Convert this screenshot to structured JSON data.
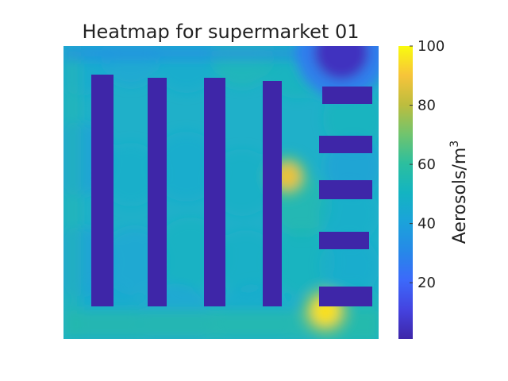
{
  "chart_data": {
    "type": "heatmap",
    "title": "Heatmap for supermarket 01",
    "colorbar": {
      "label": "Aerosols/m",
      "label_superscript": "3",
      "range": [
        1,
        100
      ],
      "ticks": [
        20,
        40,
        60,
        80,
        100
      ],
      "tick_labels": [
        "20",
        "40",
        "60",
        "80",
        "100"
      ],
      "colormap": "parula"
    },
    "axes": {
      "visible": false,
      "grid": false
    },
    "floor_mean": 45,
    "obstacle_value": 1,
    "hotspots": [
      {
        "name": "near-shelf-4",
        "peak": 88
      },
      {
        "name": "near-bottom-right-shelf",
        "peak": 95
      },
      {
        "name": "top-right-corner",
        "peak": 5
      }
    ],
    "obstacles": [
      "shelf-1",
      "shelf-2",
      "shelf-3",
      "shelf-4",
      "short-shelf-1",
      "short-shelf-2",
      "short-shelf-3",
      "short-shelf-4",
      "short-shelf-5"
    ]
  }
}
